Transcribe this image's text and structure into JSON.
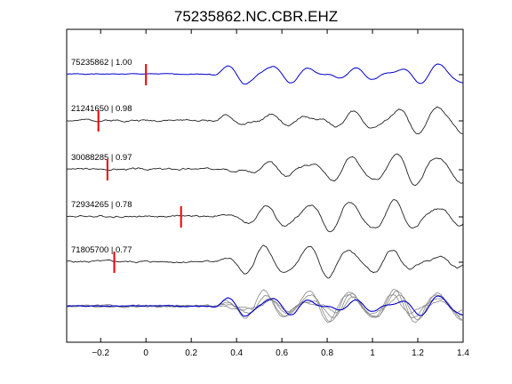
{
  "title": "75235862.NC.CBR.EHZ",
  "chart_data": {
    "type": "line",
    "title": "75235862.NC.CBR.EHZ",
    "xlabel": "",
    "ylabel": "",
    "xlim": [
      -0.35,
      1.4
    ],
    "xticks": [
      -0.2,
      0,
      0.2,
      0.4,
      0.6,
      0.8,
      1,
      1.2,
      1.4
    ],
    "xtick_labels": [
      "−0.2",
      "0",
      "0.2",
      "0.4",
      "0.6",
      "0.8",
      "1",
      "1.2",
      "1.4"
    ],
    "grid": false,
    "series": [
      {
        "name": "75235862 | 1.00",
        "label": "75235862 | 1.00",
        "pick_time": 0.0,
        "color": "#0000cc",
        "seed": 1
      },
      {
        "name": "21241650 | 0.98",
        "label": "21241650 | 0.98",
        "pick_time": -0.21,
        "color": "#222222",
        "seed": 2
      },
      {
        "name": "30088285 | 0.97",
        "label": "30088285 | 0.97",
        "pick_time": -0.17,
        "color": "#222222",
        "seed": 3
      },
      {
        "name": "72934265 | 0.78",
        "label": "72934265 | 0.78",
        "pick_time": 0.155,
        "color": "#222222",
        "seed": 4
      },
      {
        "name": "71805700 | 0.77",
        "label": "71805700 | 0.77",
        "pick_time": -0.14,
        "color": "#222222",
        "seed": 5
      }
    ],
    "stack_label": "",
    "pick_color": "#ee0000"
  }
}
